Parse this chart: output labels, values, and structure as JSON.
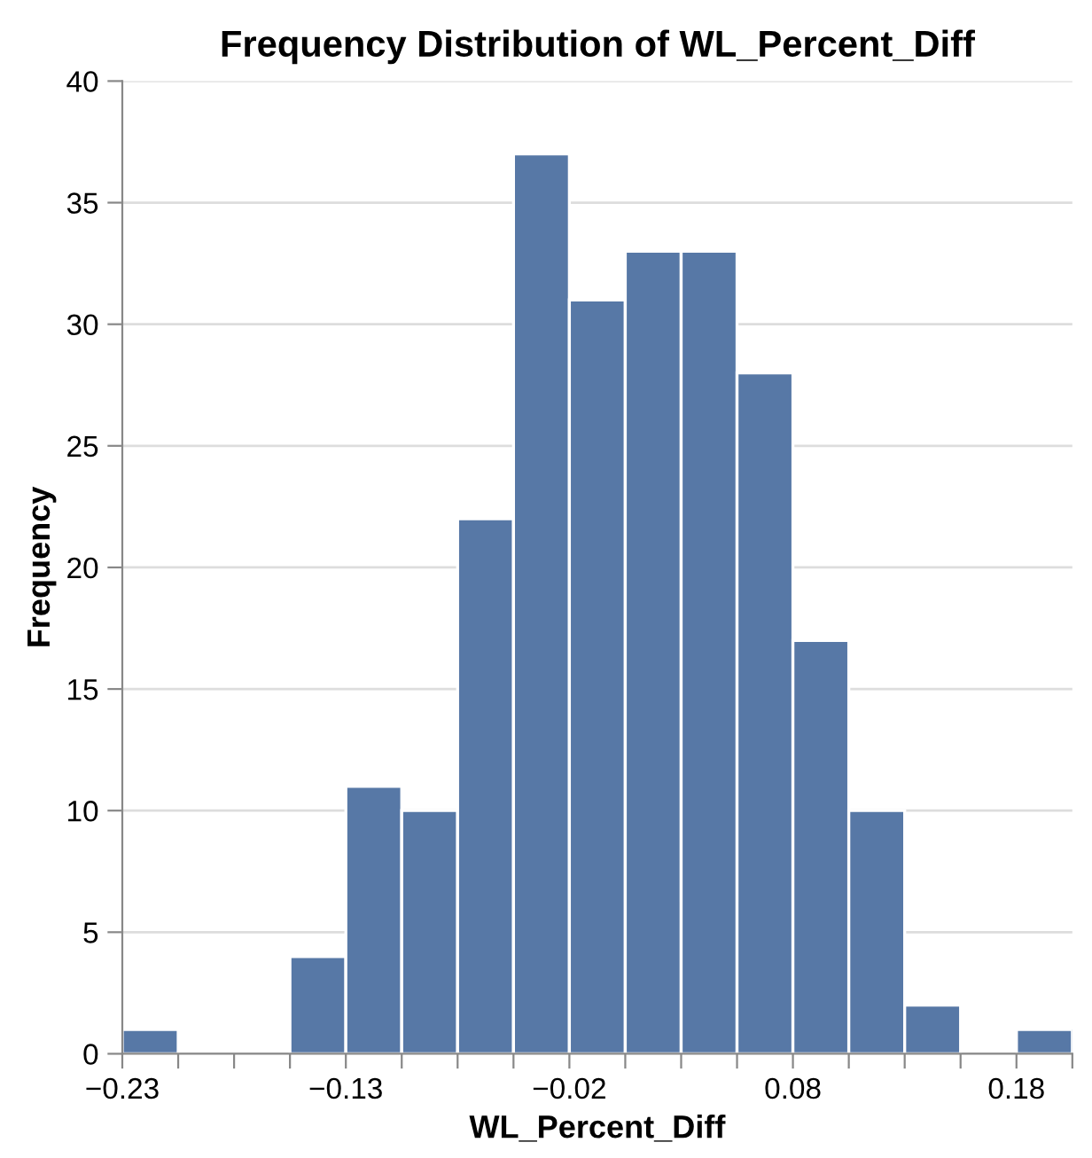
{
  "chart_data": {
    "type": "histogram",
    "title": "Frequency Distribution of WL_Percent_Diff",
    "xlabel": "WL_Percent_Diff",
    "ylabel": "Frequency",
    "bins": [
      -0.2344,
      -0.2082,
      -0.182,
      -0.1558,
      -0.1296,
      -0.1034,
      -0.0772,
      -0.051,
      -0.0248,
      0.0014,
      0.0276,
      0.0538,
      0.08,
      0.1062,
      0.1324,
      0.1586,
      0.1848,
      0.211
    ],
    "values": [
      1,
      0,
      0,
      4,
      11,
      10,
      22,
      37,
      31,
      33,
      33,
      28,
      17,
      10,
      2,
      0,
      1
    ],
    "color": "#5778a6",
    "xlim": [
      -0.2344,
      0.211
    ],
    "xticks": [
      {
        "value": -0.2344,
        "label": "−0.23"
      },
      {
        "value": -0.2082,
        "label": null
      },
      {
        "value": -0.182,
        "label": null
      },
      {
        "value": -0.1558,
        "label": null
      },
      {
        "value": -0.1296,
        "label": "−0.13"
      },
      {
        "value": -0.1034,
        "label": null
      },
      {
        "value": -0.0772,
        "label": null
      },
      {
        "value": -0.051,
        "label": null
      },
      {
        "value": -0.0248,
        "label": "−0.02"
      },
      {
        "value": 0.0014,
        "label": null
      },
      {
        "value": 0.0276,
        "label": null
      },
      {
        "value": 0.0538,
        "label": null
      },
      {
        "value": 0.08,
        "label": "0.08"
      },
      {
        "value": 0.1062,
        "label": null
      },
      {
        "value": 0.1324,
        "label": null
      },
      {
        "value": 0.1586,
        "label": null
      },
      {
        "value": 0.1848,
        "label": "0.18"
      },
      {
        "value": 0.211,
        "label": null
      }
    ],
    "ylim": [
      0,
      40
    ],
    "yticks": [
      0,
      5,
      10,
      15,
      20,
      25,
      30,
      35,
      40
    ],
    "grid": "y"
  }
}
